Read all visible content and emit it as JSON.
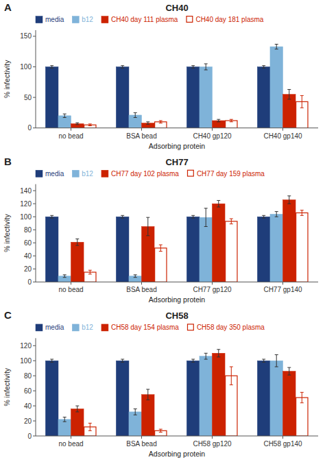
{
  "chart_data": [
    {
      "type": "bar",
      "title": "CH40",
      "annotations": [
        "A"
      ],
      "xlabel": "Adsorbing protein",
      "ylabel": "% infectivity",
      "categories": [
        "no bead",
        "BSA bead",
        "CH40 gp120",
        "CH40 gp140"
      ],
      "series": [
        {
          "name": "media",
          "color": "#1f3d7a",
          "values": [
            100,
            100,
            100,
            100
          ],
          "errors": [
            2,
            2,
            2,
            2
          ]
        },
        {
          "name": "b12",
          "color": "#7fb3d9",
          "values": [
            20,
            21,
            100,
            133
          ],
          "errors": [
            3,
            4,
            5,
            4
          ]
        },
        {
          "name": "CH40 day 111 plasma",
          "color": "#cc2200",
          "values": [
            7,
            8,
            12,
            55
          ],
          "errors": [
            1.5,
            2,
            2,
            8
          ]
        },
        {
          "name": "CH40 day 181 plasma",
          "color": "#cc2200",
          "line_style": "outline",
          "values": [
            5,
            10,
            12,
            43
          ],
          "errors": [
            1.5,
            2,
            2,
            10
          ]
        }
      ],
      "ylim": [
        0,
        160
      ],
      "yticks": [
        0,
        50,
        100,
        150
      ],
      "grid": false,
      "legend": "upper left"
    },
    {
      "type": "bar",
      "title": "CH77",
      "annotations": [
        "B"
      ],
      "xlabel": "Adsorbing protein",
      "ylabel": "% infectivity",
      "categories": [
        "no bead",
        "BSA bead",
        "CH77 gp120",
        "CH77 gp140"
      ],
      "series": [
        {
          "name": "media",
          "color": "#1f3d7a",
          "values": [
            100,
            100,
            100,
            100
          ],
          "errors": [
            2,
            2,
            2,
            2
          ]
        },
        {
          "name": "b12",
          "color": "#7fb3d9",
          "values": [
            9,
            9,
            99,
            104
          ],
          "errors": [
            2,
            2,
            14,
            4
          ]
        },
        {
          "name": "CH77 day 102 plasma",
          "color": "#cc2200",
          "values": [
            61,
            85,
            120,
            126
          ],
          "errors": [
            5,
            14,
            5,
            6
          ]
        },
        {
          "name": "CH77 day 159 plasma",
          "color": "#cc2200",
          "line_style": "outline",
          "values": [
            15,
            52,
            93,
            106
          ],
          "errors": [
            3,
            5,
            4,
            4
          ]
        }
      ],
      "ylim": [
        0,
        150
      ],
      "yticks": [
        0,
        20,
        40,
        60,
        80,
        100,
        120,
        140
      ],
      "grid": false,
      "legend": "upper left"
    },
    {
      "type": "bar",
      "title": "CH58",
      "annotations": [
        "C"
      ],
      "xlabel": "Adsorbing protein",
      "ylabel": "% infectivity",
      "categories": [
        "no bead",
        "BSA bead",
        "CH58 gp120",
        "CH58 gp140"
      ],
      "series": [
        {
          "name": "media",
          "color": "#1f3d7a",
          "values": [
            100,
            100,
            100,
            100
          ],
          "errors": [
            2,
            2,
            2,
            2
          ]
        },
        {
          "name": "b12",
          "color": "#7fb3d9",
          "values": [
            22,
            32,
            106,
            100
          ],
          "errors": [
            3,
            4,
            4,
            8
          ]
        },
        {
          "name": "CH58 day 154 plasma",
          "color": "#cc2200",
          "values": [
            36,
            55,
            110,
            86
          ],
          "errors": [
            4,
            7,
            5,
            5
          ]
        },
        {
          "name": "CH58 day 350 plasma",
          "color": "#cc2200",
          "line_style": "outline",
          "values": [
            12,
            7,
            80,
            51
          ],
          "errors": [
            5,
            2,
            12,
            7
          ]
        }
      ],
      "ylim": [
        0,
        130
      ],
      "yticks": [
        0,
        20,
        40,
        60,
        80,
        100,
        120
      ],
      "grid": false,
      "legend": "upper left"
    }
  ]
}
